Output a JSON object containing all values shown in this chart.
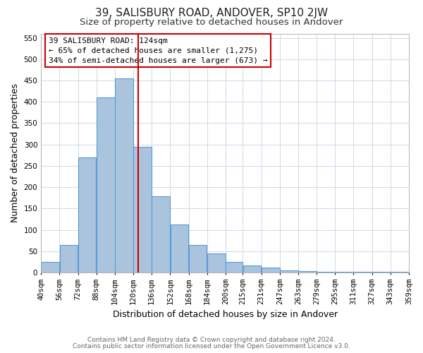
{
  "title": "39, SALISBURY ROAD, ANDOVER, SP10 2JW",
  "subtitle": "Size of property relative to detached houses in Andover",
  "xlabel": "Distribution of detached houses by size in Andover",
  "ylabel": "Number of detached properties",
  "bar_left_edges": [
    40,
    56,
    72,
    88,
    104,
    120,
    136,
    152,
    168,
    184,
    200,
    215,
    231,
    247,
    263,
    279,
    295,
    311,
    327,
    343
  ],
  "bar_widths": [
    16,
    16,
    16,
    16,
    16,
    16,
    16,
    16,
    16,
    16,
    15,
    16,
    16,
    16,
    16,
    16,
    16,
    16,
    16,
    16
  ],
  "bar_heights": [
    25,
    65,
    270,
    410,
    455,
    295,
    178,
    112,
    65,
    45,
    25,
    17,
    12,
    5,
    3,
    2,
    2,
    2,
    2,
    2
  ],
  "tick_labels": [
    "40sqm",
    "56sqm",
    "72sqm",
    "88sqm",
    "104sqm",
    "120sqm",
    "136sqm",
    "152sqm",
    "168sqm",
    "184sqm",
    "200sqm",
    "215sqm",
    "231sqm",
    "247sqm",
    "263sqm",
    "279sqm",
    "295sqm",
    "311sqm",
    "327sqm",
    "343sqm",
    "359sqm"
  ],
  "bar_color": "#aac4de",
  "bar_edge_color": "#5b9bd5",
  "grid_color": "#d0d8e8",
  "plot_bg_color": "#ffffff",
  "fig_bg_color": "#ffffff",
  "vline_x": 124,
  "vline_color": "#cc0000",
  "annotation_line1": "39 SALISBURY ROAD: 124sqm",
  "annotation_line2": "← 65% of detached houses are smaller (1,275)",
  "annotation_line3": "34% of semi-detached houses are larger (673) →",
  "annotation_box_color": "#cc0000",
  "ylim": [
    0,
    560
  ],
  "yticks": [
    0,
    50,
    100,
    150,
    200,
    250,
    300,
    350,
    400,
    450,
    500,
    550
  ],
  "footer_line1": "Contains HM Land Registry data © Crown copyright and database right 2024.",
  "footer_line2": "Contains public sector information licensed under the Open Government Licence v3.0.",
  "title_fontsize": 11,
  "subtitle_fontsize": 9.5,
  "axis_label_fontsize": 9,
  "tick_fontsize": 7.5,
  "annotation_fontsize": 8,
  "footer_fontsize": 6.5
}
